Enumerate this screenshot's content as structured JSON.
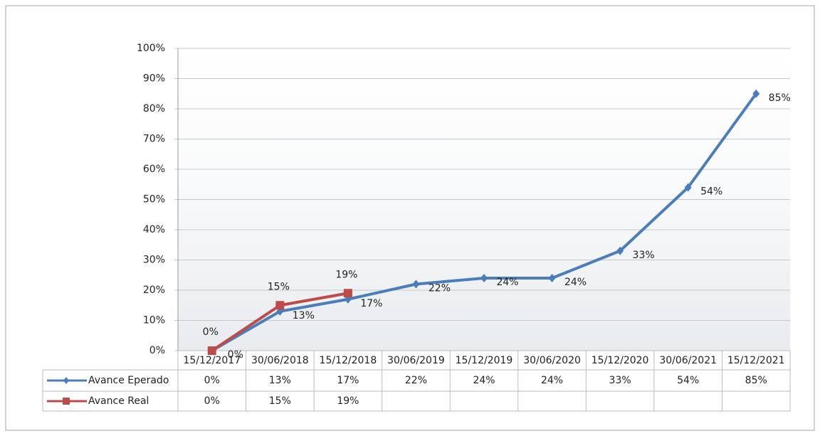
{
  "chart_data": {
    "type": "line",
    "categories": [
      "15/12/2017",
      "30/06/2018",
      "15/12/2018",
      "30/06/2019",
      "15/12/2019",
      "30/06/2020",
      "15/12/2020",
      "30/06/2021",
      "15/12/2021"
    ],
    "series": [
      {
        "name": "Avance Eperado",
        "color": "#4a7ebb",
        "marker": "diamond",
        "values": [
          0,
          13,
          17,
          22,
          24,
          24,
          33,
          54,
          85
        ],
        "value_labels": [
          "0%",
          "13%",
          "17%",
          "22%",
          "24%",
          "24%",
          "33%",
          "54%",
          "85%"
        ]
      },
      {
        "name": "Avance Real",
        "color": "#be4b48",
        "marker": "square",
        "values": [
          0,
          15,
          19,
          null,
          null,
          null,
          null,
          null,
          null
        ],
        "value_labels": [
          "0%",
          "15%",
          "19%",
          null,
          null,
          null,
          null,
          null,
          null
        ]
      }
    ],
    "ylim": [
      0,
      100
    ],
    "yticks": [
      {
        "value": 0,
        "label": "0%"
      },
      {
        "value": 10,
        "label": "10%"
      },
      {
        "value": 20,
        "label": "20%"
      },
      {
        "value": 30,
        "label": "30%"
      },
      {
        "value": 40,
        "label": "40%"
      },
      {
        "value": 50,
        "label": "50%"
      },
      {
        "value": 60,
        "label": "60%"
      },
      {
        "value": 70,
        "label": "70%"
      },
      {
        "value": 80,
        "label": "80%"
      },
      {
        "value": 90,
        "label": "90%"
      },
      {
        "value": 100,
        "label": "100%"
      }
    ],
    "grid": true,
    "legend": "table"
  }
}
